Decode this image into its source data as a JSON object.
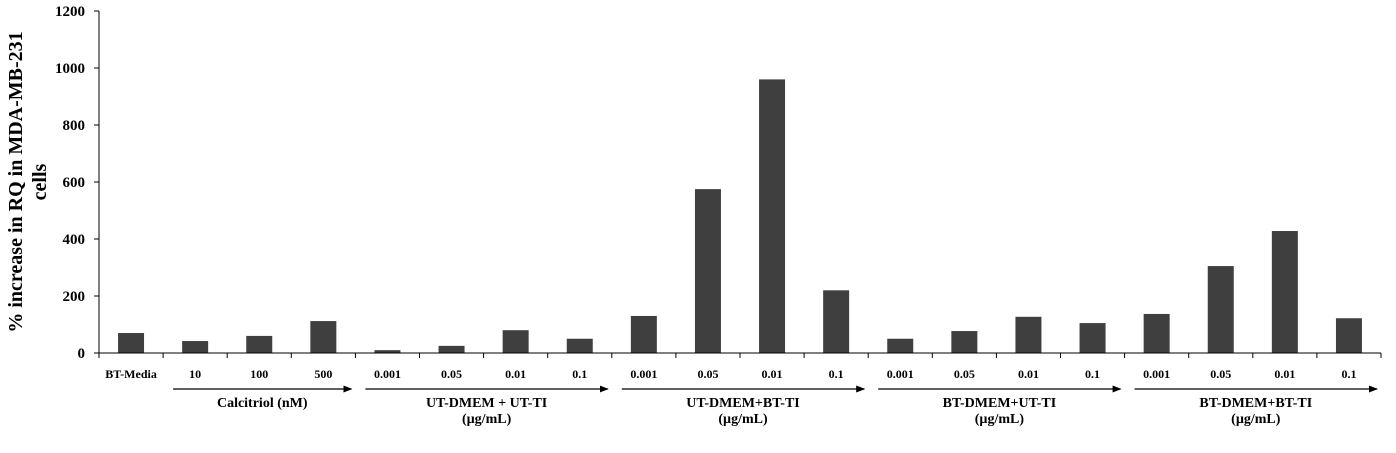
{
  "chart_data": {
    "type": "bar",
    "ylabel_lines": [
      "% increase in RQ in MDA-MB-231",
      "cells"
    ],
    "ylim": [
      0,
      1200
    ],
    "yticks": [
      0,
      200,
      400,
      600,
      800,
      1000,
      1200
    ],
    "grid": false,
    "bar_color": "#3f3f3f",
    "categories": [
      "BT-Media",
      "10",
      "100",
      "500",
      "0.001",
      "0.05",
      "0.01",
      "0.1",
      "0.001",
      "0.05",
      "0.01",
      "0.1",
      "0.001",
      "0.05",
      "0.01",
      "0.1",
      "0.001",
      "0.05",
      "0.01",
      "0.1"
    ],
    "values": [
      70,
      42,
      60,
      112,
      10,
      25,
      80,
      50,
      130,
      575,
      960,
      220,
      50,
      77,
      127,
      105,
      137,
      305,
      428,
      122
    ],
    "groups": [
      {
        "lines": [
          "Calcitriol (nM)"
        ],
        "from": 1,
        "to": 3
      },
      {
        "lines": [
          "UT-DMEM + UT-TI",
          "(µg/mL)"
        ],
        "from": 4,
        "to": 7
      },
      {
        "lines": [
          "UT-DMEM+BT-TI",
          "(µg/mL)"
        ],
        "from": 8,
        "to": 11
      },
      {
        "lines": [
          "BT-DMEM+UT-TI",
          "(µg/mL)"
        ],
        "from": 12,
        "to": 15
      },
      {
        "lines": [
          "BT-DMEM+BT-TI",
          "(µg/mL)"
        ],
        "from": 16,
        "to": 19
      }
    ]
  }
}
